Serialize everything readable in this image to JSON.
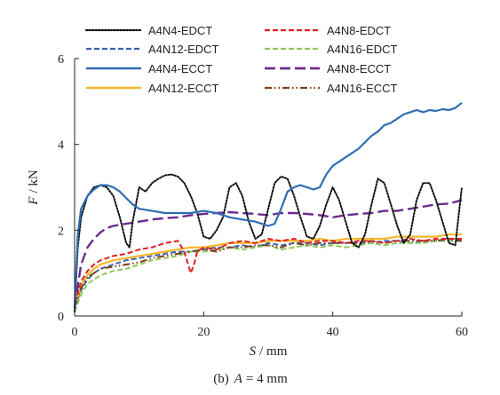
{
  "chart_data": {
    "type": "line",
    "caption": "(b) A = 4 mm",
    "caption_parts": {
      "prefix": "(b)",
      "var": "A",
      "suffix": "= 4 mm"
    },
    "xlabel": {
      "var": "S",
      "unit": "/ mm"
    },
    "ylabel": {
      "var": "F",
      "unit": "/ kN"
    },
    "xlim": [
      0,
      60
    ],
    "ylim": [
      0,
      6
    ],
    "xticks": [
      "0",
      "20",
      "40",
      "60"
    ],
    "yticks": [
      "0",
      "2",
      "4",
      "6"
    ],
    "grid": false,
    "legend_position": "top",
    "series": [
      {
        "name": "A4N4-EDCT",
        "color": "#111111",
        "style": "dotted",
        "x": [
          0,
          0.5,
          1,
          2,
          3,
          4,
          5,
          6,
          7,
          8,
          8.5,
          9,
          10,
          11,
          12,
          13,
          14,
          15,
          16,
          17,
          18,
          19,
          20,
          21,
          22,
          23,
          24,
          25,
          26,
          27,
          28,
          29,
          30,
          31,
          32,
          33,
          34,
          35,
          36,
          37,
          38,
          39,
          40,
          41,
          42,
          43,
          44,
          45,
          46,
          47,
          48,
          49,
          50,
          51,
          52,
          53,
          54,
          55,
          56,
          57,
          58,
          59,
          60
        ],
        "y": [
          0.1,
          1.6,
          2.3,
          2.8,
          3.0,
          3.05,
          3.0,
          2.8,
          2.3,
          1.7,
          1.6,
          2.2,
          3.0,
          2.9,
          3.1,
          3.2,
          3.28,
          3.3,
          3.25,
          3.1,
          2.8,
          2.4,
          1.85,
          1.8,
          2.0,
          2.3,
          3.0,
          3.1,
          2.8,
          2.2,
          1.8,
          1.9,
          2.5,
          3.1,
          3.25,
          3.2,
          2.8,
          2.3,
          1.85,
          1.8,
          2.1,
          2.6,
          3.0,
          2.7,
          2.2,
          1.7,
          1.6,
          1.9,
          2.6,
          3.2,
          3.1,
          2.6,
          2.1,
          1.7,
          1.9,
          2.7,
          3.1,
          3.1,
          2.7,
          2.2,
          1.7,
          1.65,
          3.0
        ]
      },
      {
        "name": "A4N8-EDCT",
        "color": "#e02020",
        "style": "dashed",
        "x": [
          0,
          1,
          2,
          3,
          4,
          5,
          6,
          8,
          10,
          12,
          14,
          16,
          17,
          18,
          18.5,
          19,
          20,
          22,
          24,
          26,
          28,
          30,
          32,
          34,
          36,
          38,
          40,
          42,
          44,
          46,
          48,
          50,
          52,
          54,
          56,
          58,
          60
        ],
        "y": [
          0.3,
          0.8,
          1.05,
          1.2,
          1.3,
          1.35,
          1.4,
          1.45,
          1.55,
          1.6,
          1.7,
          1.75,
          1.5,
          1.0,
          1.2,
          1.5,
          1.6,
          1.55,
          1.7,
          1.75,
          1.7,
          1.8,
          1.75,
          1.8,
          1.7,
          1.75,
          1.75,
          1.7,
          1.75,
          1.75,
          1.7,
          1.75,
          1.8,
          1.75,
          1.8,
          1.8,
          1.8
        ]
      },
      {
        "name": "A4N12-EDCT",
        "color": "#3b63b4",
        "style": "dashed",
        "x": [
          0,
          1,
          2,
          3,
          4,
          6,
          8,
          10,
          12,
          14,
          16,
          18,
          20,
          22,
          24,
          26,
          28,
          30,
          32,
          34,
          36,
          38,
          40,
          42,
          44,
          46,
          48,
          50,
          52,
          54,
          56,
          58,
          60
        ],
        "y": [
          0.2,
          0.6,
          0.85,
          1.0,
          1.1,
          1.2,
          1.3,
          1.35,
          1.4,
          1.45,
          1.5,
          1.5,
          1.55,
          1.6,
          1.6,
          1.65,
          1.6,
          1.7,
          1.65,
          1.7,
          1.7,
          1.65,
          1.7,
          1.7,
          1.7,
          1.7,
          1.75,
          1.75,
          1.7,
          1.75,
          1.75,
          1.75,
          1.75
        ]
      },
      {
        "name": "A4N16-EDCT",
        "color": "#8fc85a",
        "style": "dashed",
        "x": [
          0,
          1,
          2,
          3,
          4,
          6,
          8,
          10,
          12,
          14,
          16,
          18,
          20,
          22,
          24,
          26,
          28,
          30,
          32,
          34,
          36,
          38,
          40,
          42,
          44,
          46,
          48,
          50,
          52,
          54,
          56,
          58,
          60
        ],
        "y": [
          0.1,
          0.5,
          0.75,
          0.85,
          0.95,
          1.05,
          1.1,
          1.2,
          1.3,
          1.35,
          1.4,
          1.5,
          1.5,
          1.55,
          1.6,
          1.55,
          1.6,
          1.65,
          1.55,
          1.6,
          1.65,
          1.6,
          1.65,
          1.6,
          1.65,
          1.7,
          1.65,
          1.7,
          1.7,
          1.7,
          1.75,
          1.75,
          1.8
        ]
      },
      {
        "name": "A4N4-ECCT",
        "color": "#2f6db3",
        "style": "solid",
        "x": [
          0,
          0.5,
          1,
          2,
          3,
          4,
          5,
          6,
          7,
          8,
          9,
          10,
          12,
          14,
          16,
          18,
          20,
          22,
          24,
          26,
          28,
          30,
          31,
          32,
          33,
          34,
          35,
          36,
          37,
          38,
          39,
          40,
          42,
          44,
          45,
          46,
          47,
          48,
          49,
          50,
          51,
          52,
          53,
          54,
          55,
          56,
          57,
          58,
          59,
          60
        ],
        "y": [
          0.2,
          1.9,
          2.5,
          2.8,
          2.95,
          3.05,
          3.05,
          3.0,
          2.9,
          2.75,
          2.6,
          2.5,
          2.45,
          2.4,
          2.4,
          2.4,
          2.45,
          2.4,
          2.3,
          2.25,
          2.2,
          2.1,
          2.15,
          2.5,
          2.9,
          3.0,
          3.05,
          3.0,
          2.95,
          3.0,
          3.3,
          3.5,
          3.7,
          3.9,
          4.05,
          4.2,
          4.3,
          4.45,
          4.5,
          4.6,
          4.7,
          4.75,
          4.8,
          4.75,
          4.8,
          4.78,
          4.82,
          4.8,
          4.85,
          4.97
        ]
      },
      {
        "name": "A4N8-ECCT",
        "color": "#6a2c8e",
        "style": "longdash",
        "x": [
          0,
          1,
          2,
          3,
          4,
          5,
          6,
          8,
          10,
          12,
          14,
          16,
          18,
          20,
          22,
          24,
          26,
          28,
          30,
          32,
          34,
          36,
          38,
          40,
          42,
          44,
          46,
          48,
          50,
          52,
          54,
          56,
          58,
          60
        ],
        "y": [
          0.2,
          1.2,
          1.6,
          1.8,
          1.95,
          2.05,
          2.1,
          2.15,
          2.2,
          2.25,
          2.28,
          2.3,
          2.35,
          2.38,
          2.4,
          2.42,
          2.4,
          2.38,
          2.35,
          2.4,
          2.4,
          2.38,
          2.35,
          2.3,
          2.35,
          2.38,
          2.4,
          2.45,
          2.45,
          2.5,
          2.55,
          2.6,
          2.62,
          2.7
        ]
      },
      {
        "name": "A4N12-ECCT",
        "color": "#f5b82a",
        "style": "solid",
        "x": [
          0,
          1,
          2,
          3,
          4,
          6,
          8,
          10,
          12,
          14,
          16,
          18,
          20,
          22,
          24,
          26,
          28,
          30,
          32,
          34,
          36,
          38,
          40,
          42,
          44,
          46,
          48,
          50,
          52,
          54,
          56,
          58,
          60
        ],
        "y": [
          0.2,
          0.7,
          0.95,
          1.1,
          1.2,
          1.3,
          1.35,
          1.4,
          1.45,
          1.5,
          1.55,
          1.6,
          1.6,
          1.65,
          1.7,
          1.7,
          1.7,
          1.75,
          1.75,
          1.75,
          1.75,
          1.8,
          1.75,
          1.8,
          1.8,
          1.8,
          1.8,
          1.85,
          1.85,
          1.85,
          1.85,
          1.9,
          1.9
        ]
      },
      {
        "name": "A4N16-ECCT",
        "color": "#7b3f1d",
        "style": "dashdotdot",
        "x": [
          0,
          1,
          2,
          3,
          4,
          6,
          8,
          10,
          12,
          14,
          16,
          18,
          20,
          22,
          24,
          26,
          28,
          30,
          32,
          34,
          36,
          38,
          40,
          42,
          44,
          46,
          48,
          50,
          52,
          54,
          56,
          58,
          60
        ],
        "y": [
          0.2,
          0.65,
          0.9,
          1.0,
          1.1,
          1.15,
          1.2,
          1.25,
          1.35,
          1.4,
          1.45,
          1.5,
          1.55,
          1.5,
          1.6,
          1.6,
          1.65,
          1.65,
          1.6,
          1.7,
          1.65,
          1.7,
          1.7,
          1.7,
          1.7,
          1.75,
          1.7,
          1.75,
          1.75,
          1.75,
          1.75,
          1.8,
          1.75
        ]
      }
    ]
  }
}
